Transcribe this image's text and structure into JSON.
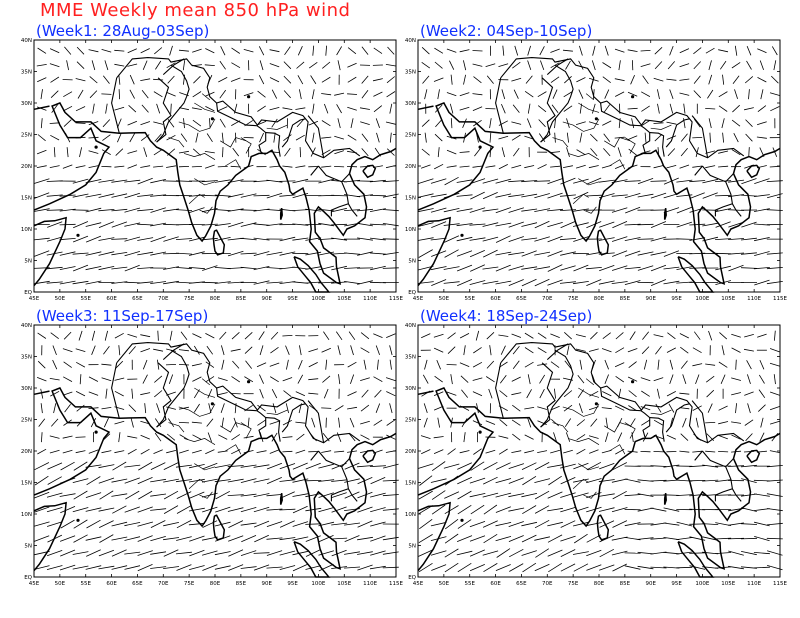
{
  "title": "MME Weekly mean 850 hPa wind",
  "colors": {
    "title": "#ff2020",
    "panel_title": "#1030ff",
    "lines": "#000000"
  },
  "panels": [
    {
      "title": "(Week1: 28Aug-03Sep)",
      "regime": 1
    },
    {
      "title": "(Week2: 04Sep-10Sep)",
      "regime": 2
    },
    {
      "title": "(Week3: 11Sep-17Sep)",
      "regime": 3
    },
    {
      "title": "(Week4: 18Sep-24Sep)",
      "regime": 4
    }
  ],
  "axes": {
    "lon_range": [
      45,
      115
    ],
    "lat_range": [
      0,
      40
    ],
    "x_ticks": [
      "45E",
      "50E",
      "55E",
      "60E",
      "65E",
      "70E",
      "75E",
      "80E",
      "85E",
      "90E",
      "95E",
      "100E",
      "105E",
      "110E",
      "115E"
    ],
    "y_ticks": [
      "EQ",
      "5N",
      "10N",
      "15N",
      "20N",
      "25N",
      "30N",
      "35N",
      "40N"
    ]
  }
}
